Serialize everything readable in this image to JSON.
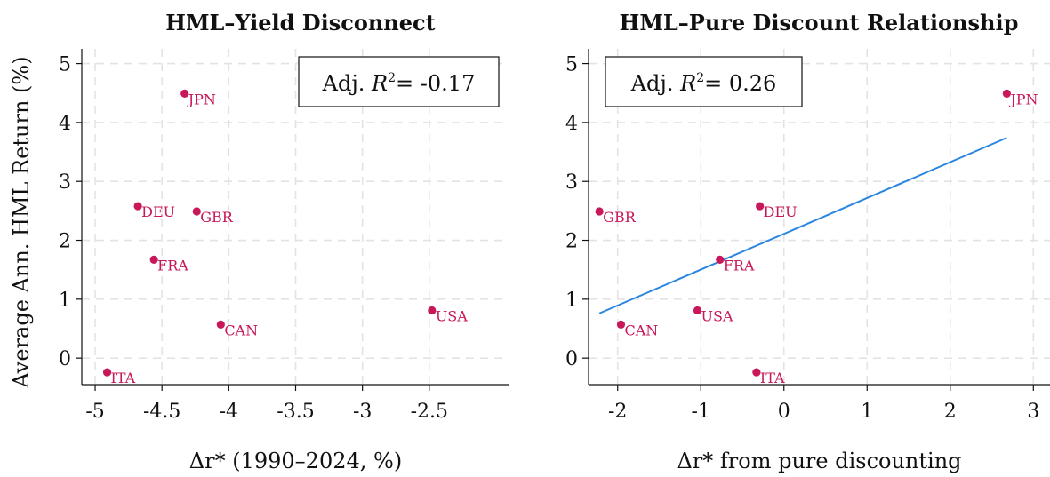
{
  "chart_data": [
    {
      "type": "scatter",
      "title": "HML–Yield Disconnect",
      "xlabel": "Δr* (1990–2024, %)",
      "ylabel": "Average Ann. HML Return (%)",
      "xlim": [
        -5.1,
        -1.9
      ],
      "ylim": [
        -0.45,
        5.25
      ],
      "xticks": [
        "-5",
        "-4.5",
        "-4",
        "-3.5",
        "-3",
        "-2.5"
      ],
      "xtick_values": [
        -5,
        -4.5,
        -4,
        -3.5,
        -3,
        -2.5
      ],
      "yticks": [
        "0",
        "1",
        "2",
        "3",
        "4",
        "5"
      ],
      "ytick_values": [
        0,
        1,
        2,
        3,
        4,
        5
      ],
      "grid": true,
      "annotation": {
        "prefix": "Adj. ",
        "var": "R",
        "sup": "2",
        "value": "= -0.17",
        "placement": "top-right"
      },
      "points": [
        {
          "label": "JPN",
          "x": -4.33,
          "y": 4.49
        },
        {
          "label": "DEU",
          "x": -4.68,
          "y": 2.58
        },
        {
          "label": "GBR",
          "x": -4.24,
          "y": 2.49
        },
        {
          "label": "FRA",
          "x": -4.56,
          "y": 1.67
        },
        {
          "label": "CAN",
          "x": -4.06,
          "y": 0.57
        },
        {
          "label": "USA",
          "x": -2.48,
          "y": 0.81
        },
        {
          "label": "ITA",
          "x": -4.91,
          "y": -0.24
        }
      ]
    },
    {
      "type": "scatter",
      "title": "HML–Pure Discount Relationship",
      "xlabel": "Δr* from pure discounting",
      "ylabel": "",
      "xlim": [
        -2.35,
        3.2
      ],
      "ylim": [
        -0.45,
        5.25
      ],
      "xticks": [
        "-2",
        "-1",
        "0",
        "1",
        "2",
        "3"
      ],
      "xtick_values": [
        -2,
        -1,
        0,
        1,
        2,
        3
      ],
      "yticks": [
        "0",
        "1",
        "2",
        "3",
        "4",
        "5"
      ],
      "ytick_values": [
        0,
        1,
        2,
        3,
        4,
        5
      ],
      "grid": true,
      "annotation": {
        "prefix": "Adj. ",
        "var": "R",
        "sup": "2",
        "value": "= 0.26",
        "placement": "top-left"
      },
      "points": [
        {
          "label": "JPN",
          "x": 2.68,
          "y": 4.49
        },
        {
          "label": "GBR",
          "x": -2.22,
          "y": 2.49
        },
        {
          "label": "DEU",
          "x": -0.29,
          "y": 2.58
        },
        {
          "label": "FRA",
          "x": -0.77,
          "y": 1.67
        },
        {
          "label": "CAN",
          "x": -1.96,
          "y": 0.57
        },
        {
          "label": "USA",
          "x": -1.04,
          "y": 0.81
        },
        {
          "label": "ITA",
          "x": -0.33,
          "y": -0.24
        }
      ],
      "fit_line": {
        "x": [
          -2.22,
          2.68
        ],
        "y": [
          0.76,
          3.74
        ]
      }
    }
  ],
  "colors": {
    "point": "#c8185a",
    "fit": "#2a86e0",
    "grid": "#e3e3e3",
    "axis": "#111111"
  }
}
